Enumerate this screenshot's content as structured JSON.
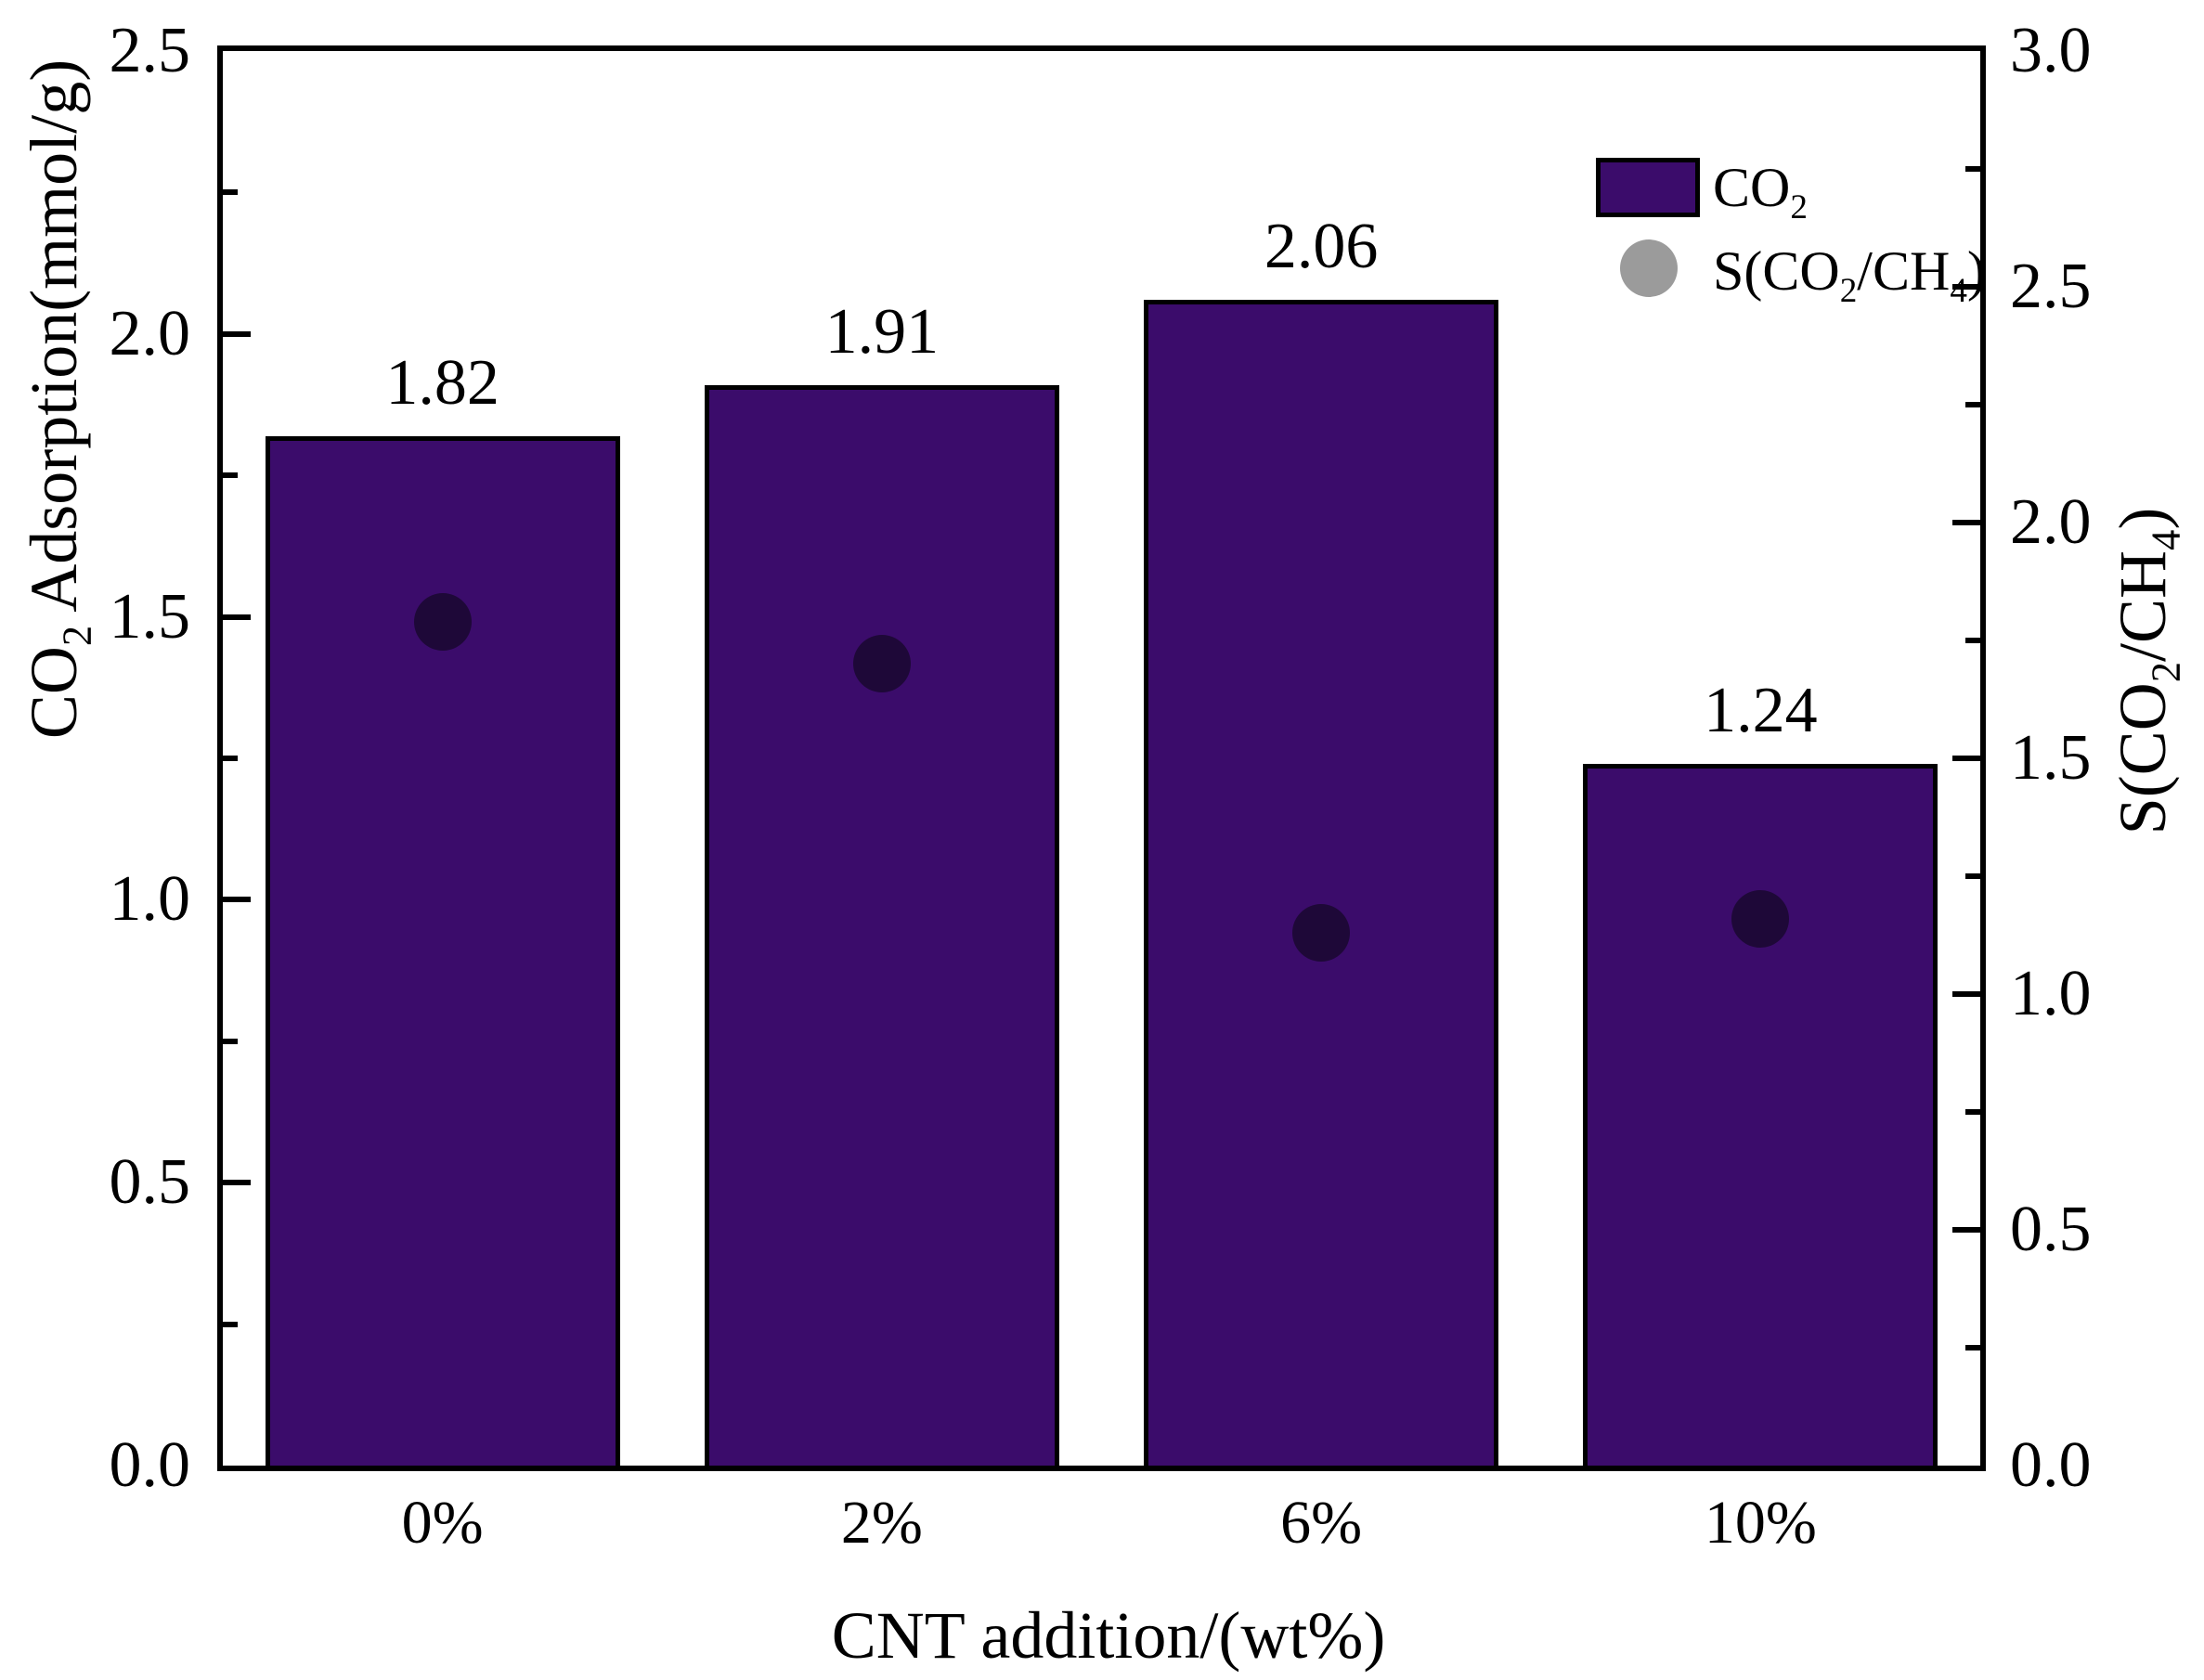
{
  "chart_data": {
    "type": "bar",
    "categories": [
      "0%",
      "2%",
      "6%",
      "10%"
    ],
    "series": [
      {
        "name": "CO₂",
        "type": "bar",
        "axis": "left",
        "values": [
          1.82,
          1.91,
          2.06,
          1.24
        ],
        "data_labels": [
          "1.82",
          "1.91",
          "2.06",
          "1.24"
        ]
      },
      {
        "name": "S(CO₂/CH₄)",
        "type": "scatter",
        "axis": "right",
        "values": [
          1.79,
          1.7,
          1.13,
          1.16
        ]
      }
    ],
    "title": "",
    "xlabel": "CNT addition/(wt%)",
    "ylabel_left": "CO₂ Adsorption(mmol/g)",
    "ylabel_right": "S(CO₂/CH₄)",
    "ylim_left": [
      0,
      2.5
    ],
    "ylim_right": [
      0,
      3.0
    ],
    "yticks_left": [
      "0.0",
      "0.5",
      "1.0",
      "1.5",
      "2.0",
      "2.5"
    ],
    "yticks_right": [
      "0.0",
      "0.5",
      "1.0",
      "1.5",
      "2.0",
      "2.5",
      "3.0"
    ],
    "minor_tick_step": 0.25,
    "grid": "off",
    "legend_position": "upper-right-inside"
  },
  "colors": {
    "bar_fill": "#3B0C6B",
    "bar_border": "#000000",
    "dot_fill": "#1E0838",
    "legend_dot": "#9B9B9B",
    "frame": "#000000",
    "background": "#FFFFFF",
    "text": "#000000"
  }
}
